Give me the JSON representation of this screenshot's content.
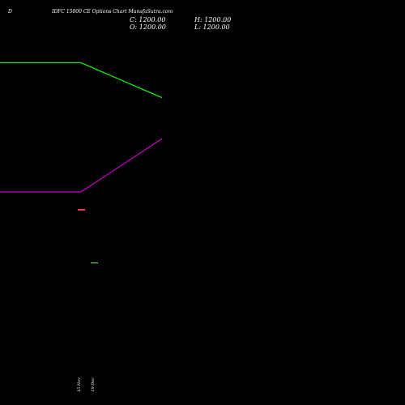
{
  "header": {
    "corner_label": "D",
    "title": "IDFC 15000 CE Options Chart MunafaSutra.com",
    "ohlc": {
      "close": "C: 1200.00",
      "high": "H: 1200.00",
      "open": "O: 1200.00",
      "low": "L: 1200.00"
    }
  },
  "colors": {
    "background": "#000000",
    "text": "#ffffff",
    "line_upper": "#00ff00",
    "line_lower": "#cc00cc",
    "candle_red": "#ff3333",
    "candle_green": "#66cc66"
  },
  "chart_data": {
    "type": "line",
    "x": [
      "",
      "15 Nov",
      "19 Dec"
    ],
    "series": [
      {
        "values": [
          1,
          1,
          0.77
        ]
      },
      {
        "values": [
          0.15,
          0.15,
          0.5
        ]
      }
    ],
    "candles": [
      {
        "x": "15 Nov",
        "open": 1200,
        "high": 1200,
        "low": 1200,
        "close": 1200,
        "color": "red"
      },
      {
        "x": "19 Dec",
        "open": 1200,
        "high": 1200,
        "low": 1200,
        "close": 1200,
        "color": "green"
      }
    ],
    "ylim": [
      0,
      1.2
    ],
    "grid": false
  }
}
